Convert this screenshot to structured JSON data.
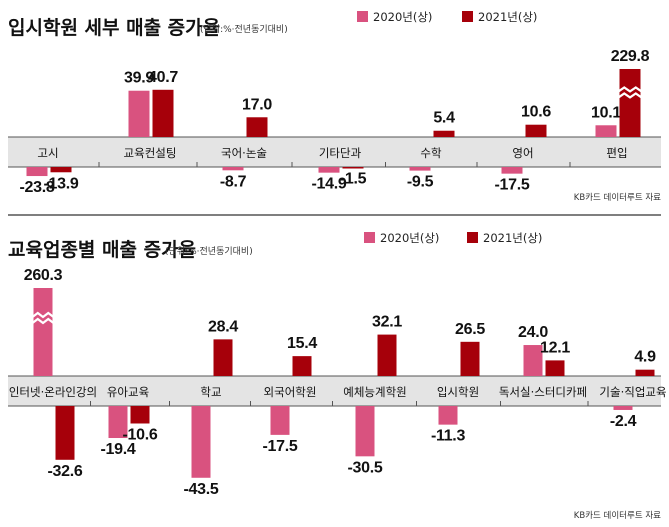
{
  "colors": {
    "s2020": "#d9527f",
    "s2021": "#a6000a",
    "band": "#e4e4e4",
    "axis": "#555555"
  },
  "chart_data": [
    {
      "type": "bar",
      "title": "입시학원 세부 매출 증가율",
      "unit_note": "(단위:%·전년동기대비)",
      "source": "KB카드 데이터루트 자료",
      "categories": [
        "고시",
        "교육컨설팅",
        "국어·논술",
        "기타단과",
        "수학",
        "영어",
        "편입"
      ],
      "series": [
        {
          "name": "2020년(상)",
          "values": [
            -23.8,
            39.9,
            -8.7,
            -14.9,
            -9.5,
            -17.5,
            10.1
          ]
        },
        {
          "name": "2021년(상)",
          "values": [
            -13.9,
            40.7,
            17.0,
            -1.5,
            5.4,
            10.6,
            229.8
          ]
        }
      ],
      "value_labels": [
        [
          "-23.8",
          "39.9",
          "-8.7",
          "-14.9",
          "-9.5",
          "-17.5",
          "10.1"
        ],
        [
          "-13.9",
          "40.7",
          "17.0",
          "-1.5",
          "5.4",
          "10.6",
          "229.8"
        ]
      ],
      "broken_bars": [
        {
          "series": 1,
          "category": 6
        }
      ]
    },
    {
      "type": "bar",
      "title": "교육업종별 매출 증가율",
      "unit_note": "(단위:%·전년동기대비)",
      "source": "KB카드 데이터루트 자료",
      "categories": [
        "인터넷·온라인강의",
        "유아교육",
        "학교",
        "외국어학원",
        "예체능계학원",
        "입시학원",
        "독서실·스터디카페",
        "기술·직업교육"
      ],
      "series": [
        {
          "name": "2020년(상)",
          "values": [
            260.3,
            -19.4,
            -43.5,
            -17.5,
            -30.5,
            -11.3,
            24.0,
            -2.4
          ]
        },
        {
          "name": "2021년(상)",
          "values": [
            -32.6,
            -10.6,
            28.4,
            15.4,
            32.1,
            26.5,
            12.1,
            4.9
          ]
        }
      ],
      "value_labels": [
        [
          "260.3",
          "-19.4",
          "-43.5",
          "-17.5",
          "-30.5",
          "-11.3",
          "24.0",
          "-2.4"
        ],
        [
          "-32.6",
          "-10.6",
          "28.4",
          "15.4",
          "32.1",
          "26.5",
          "12.1",
          "4.9"
        ]
      ],
      "broken_bars": [
        {
          "series": 0,
          "category": 0
        }
      ]
    }
  ]
}
